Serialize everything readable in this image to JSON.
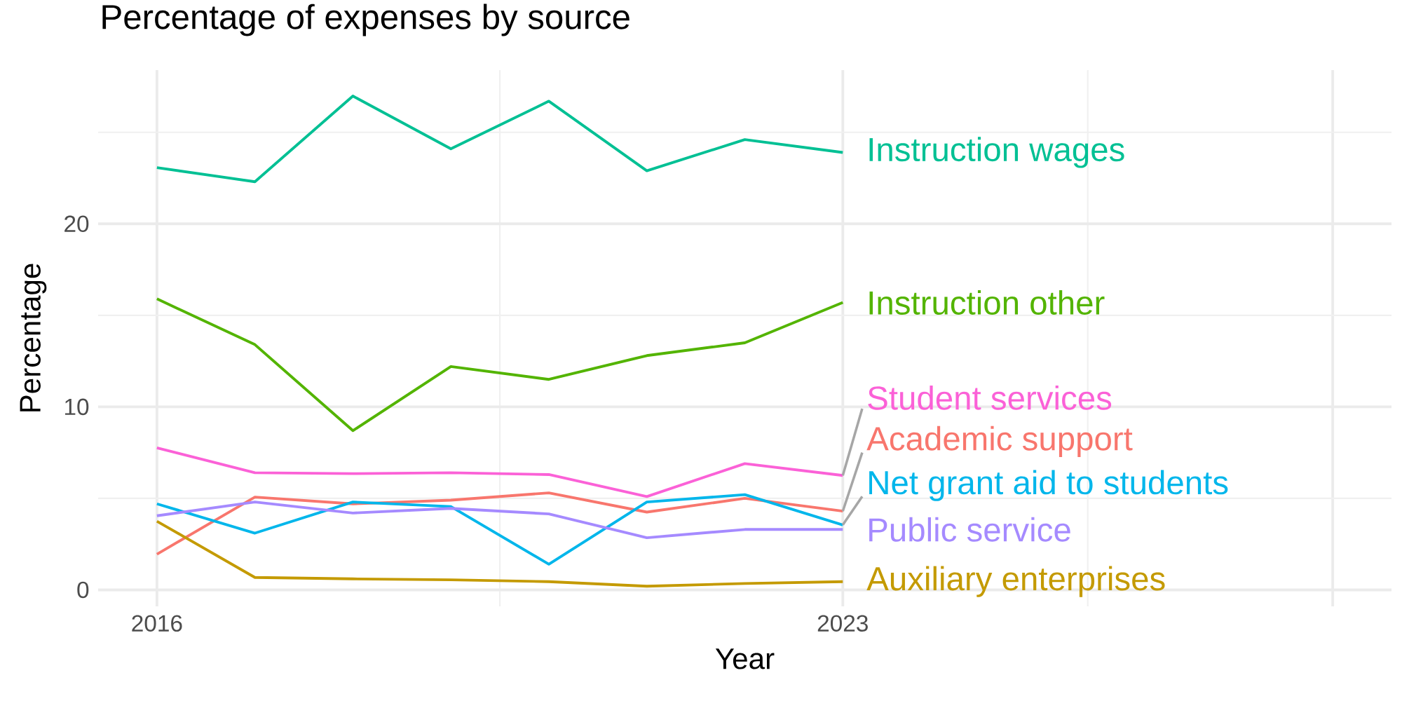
{
  "chart_data": {
    "type": "line",
    "title": "Percentage of expenses by source",
    "xlabel": "Year",
    "ylabel": "Percentage",
    "x": [
      2016,
      2017,
      2018,
      2019,
      2020,
      2021,
      2022,
      2023
    ],
    "series": [
      {
        "name": "Academic support",
        "color": "#f8766d",
        "values": [
          1.95,
          5.07,
          4.7,
          4.9,
          5.3,
          4.25,
          5.0,
          4.3
        ]
      },
      {
        "name": "Auxiliary enterprises",
        "color": "#c49a00",
        "values": [
          3.75,
          0.68,
          0.6,
          0.55,
          0.45,
          0.2,
          0.35,
          0.45
        ]
      },
      {
        "name": "Instruction other",
        "color": "#53b400",
        "values": [
          15.9,
          13.4,
          8.7,
          12.2,
          11.5,
          12.8,
          13.5,
          15.7
        ]
      },
      {
        "name": "Instruction wages",
        "color": "#00c094",
        "values": [
          23.07,
          22.3,
          26.98,
          24.1,
          26.7,
          22.9,
          24.6,
          23.9
        ]
      },
      {
        "name": "Net grant aid to students",
        "color": "#00b6eb",
        "values": [
          4.7,
          3.1,
          4.8,
          4.55,
          1.4,
          4.8,
          5.2,
          3.55
        ]
      },
      {
        "name": "Public service",
        "color": "#a58aff",
        "values": [
          4.05,
          4.8,
          4.2,
          4.45,
          4.15,
          2.85,
          3.3,
          3.3
        ]
      },
      {
        "name": "Student services",
        "color": "#fb61d7",
        "values": [
          7.76,
          6.4,
          6.35,
          6.4,
          6.3,
          5.1,
          6.9,
          6.25
        ]
      }
    ],
    "xlim": [
      2015.4,
      2028.6
    ],
    "xticks": [
      2016,
      2023,
      {
        "value": 2028,
        "label": null
      }
    ],
    "ylim": [
      -0.9,
      28.4
    ],
    "yticks": [
      0,
      10,
      20
    ],
    "grid": true,
    "line_style": "solid"
  }
}
